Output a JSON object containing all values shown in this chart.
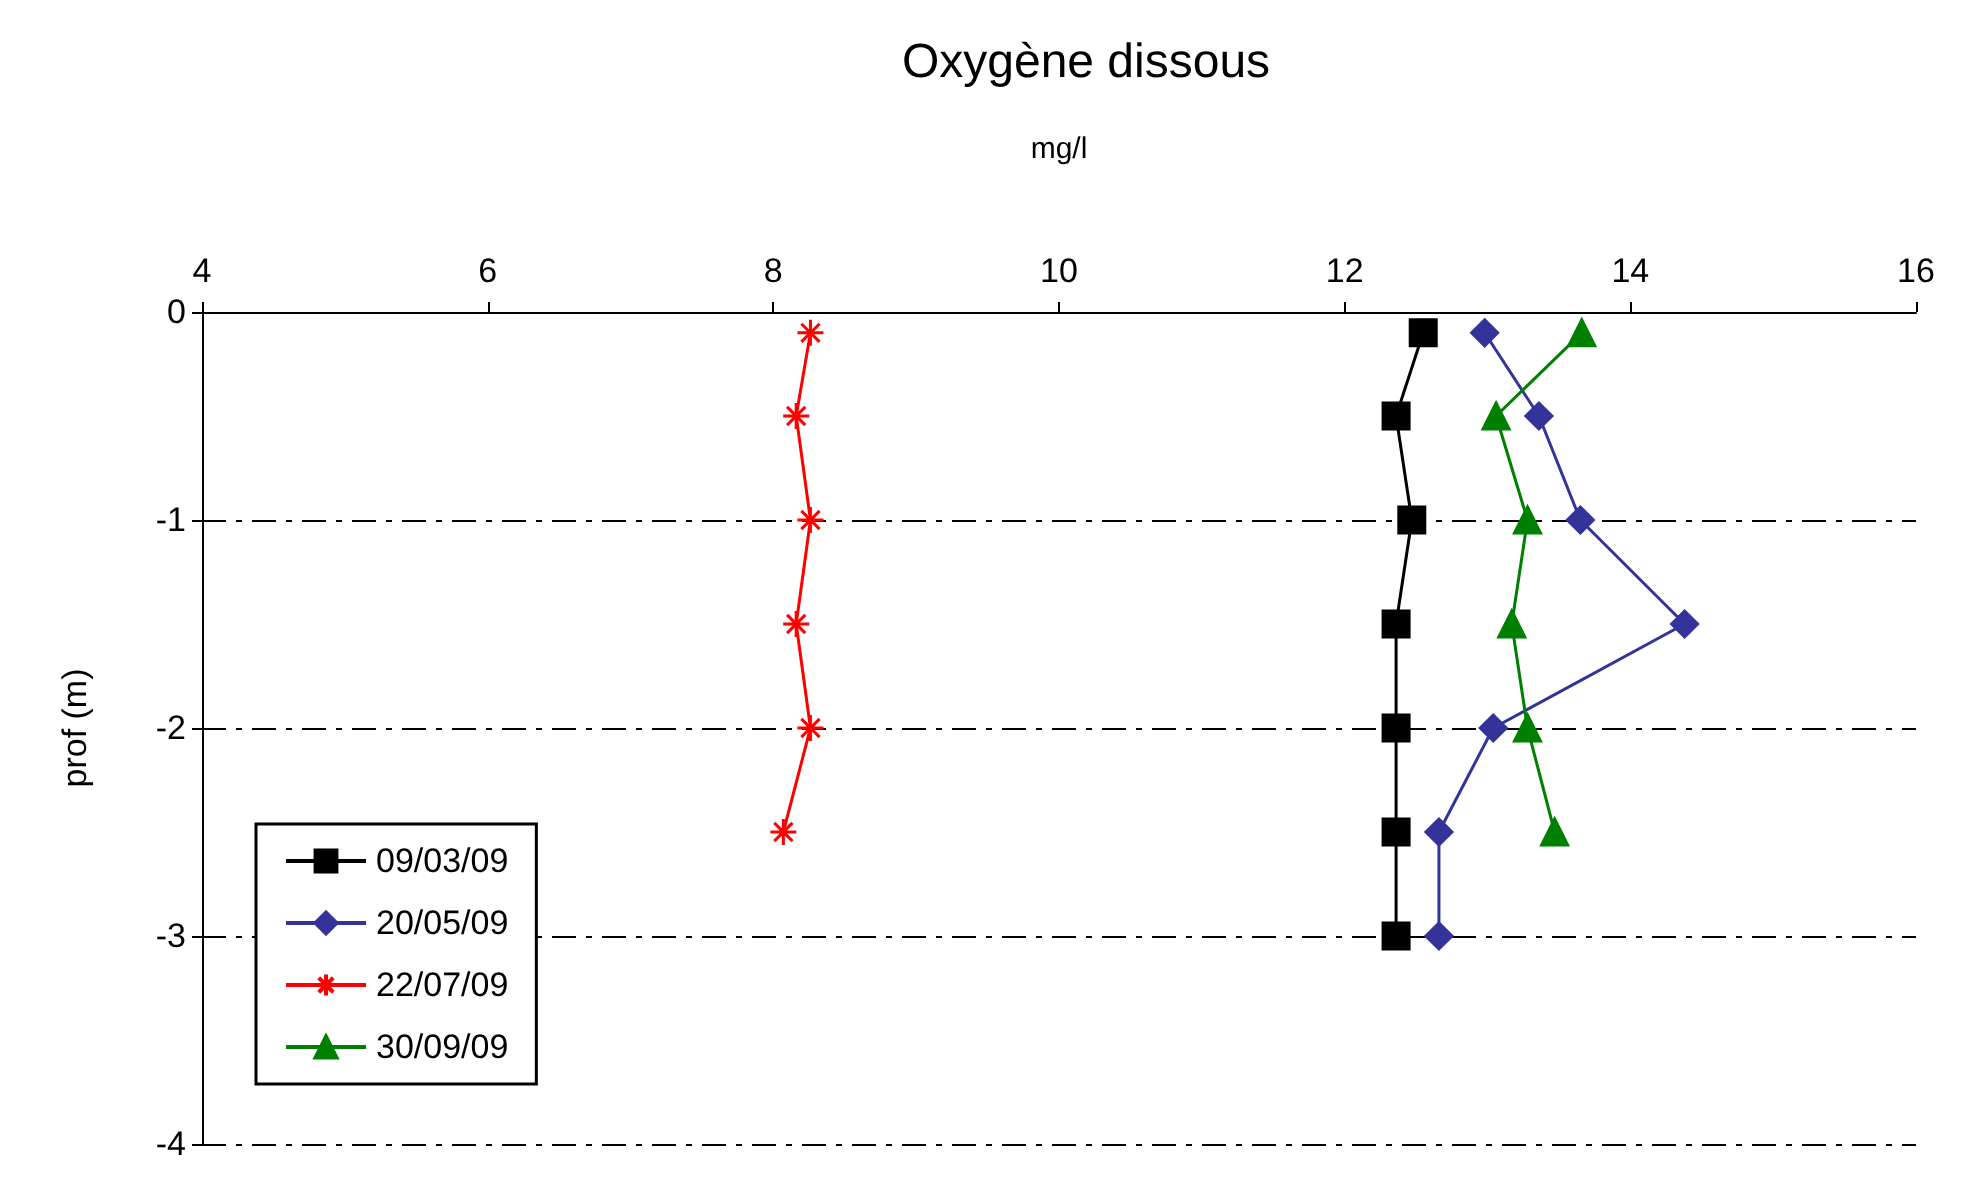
{
  "chart_data": {
    "type": "line",
    "title": "Oxygène dissous",
    "xlabel": "mg/l",
    "ylabel": "prof (m)",
    "xlim": [
      4,
      16
    ],
    "xticks": [
      4,
      6,
      8,
      10,
      12,
      14,
      16
    ],
    "ylim": [
      -4,
      0
    ],
    "yticks": [
      -4,
      -3,
      -2,
      -1,
      0
    ],
    "grid": "y",
    "legend": "bottom left",
    "line_style": "solid",
    "series": [
      {
        "name": "09/03/09",
        "color": "#000000",
        "marker": "square",
        "x": [
          12.55,
          12.36,
          12.47,
          12.36,
          12.36,
          12.36,
          12.36
        ],
        "values": [
          -0.1,
          -0.5,
          -1,
          -1.5,
          -2,
          -2.5,
          -3
        ]
      },
      {
        "name": "20/05/09",
        "color": "#333399",
        "marker": "diamond",
        "x": [
          12.98,
          13.36,
          13.65,
          14.38,
          13.04,
          12.66,
          12.66
        ],
        "values": [
          -0.1,
          -0.5,
          -1,
          -1.5,
          -2,
          -2.5,
          -3
        ]
      },
      {
        "name": "22/07/09",
        "color": "#ff0000",
        "marker": "cross",
        "x": [
          8.26,
          8.16,
          8.26,
          8.16,
          8.26,
          8.07
        ],
        "values": [
          -0.1,
          -0.5,
          -1,
          -1.5,
          -2,
          -2.5
        ]
      },
      {
        "name": "30/09/09",
        "color": "#008000",
        "marker": "triangle",
        "x": [
          13.66,
          13.06,
          13.28,
          13.17,
          13.28,
          13.47
        ],
        "values": [
          -0.1,
          -0.5,
          -1,
          -1.5,
          -2,
          -2.5
        ]
      }
    ]
  }
}
